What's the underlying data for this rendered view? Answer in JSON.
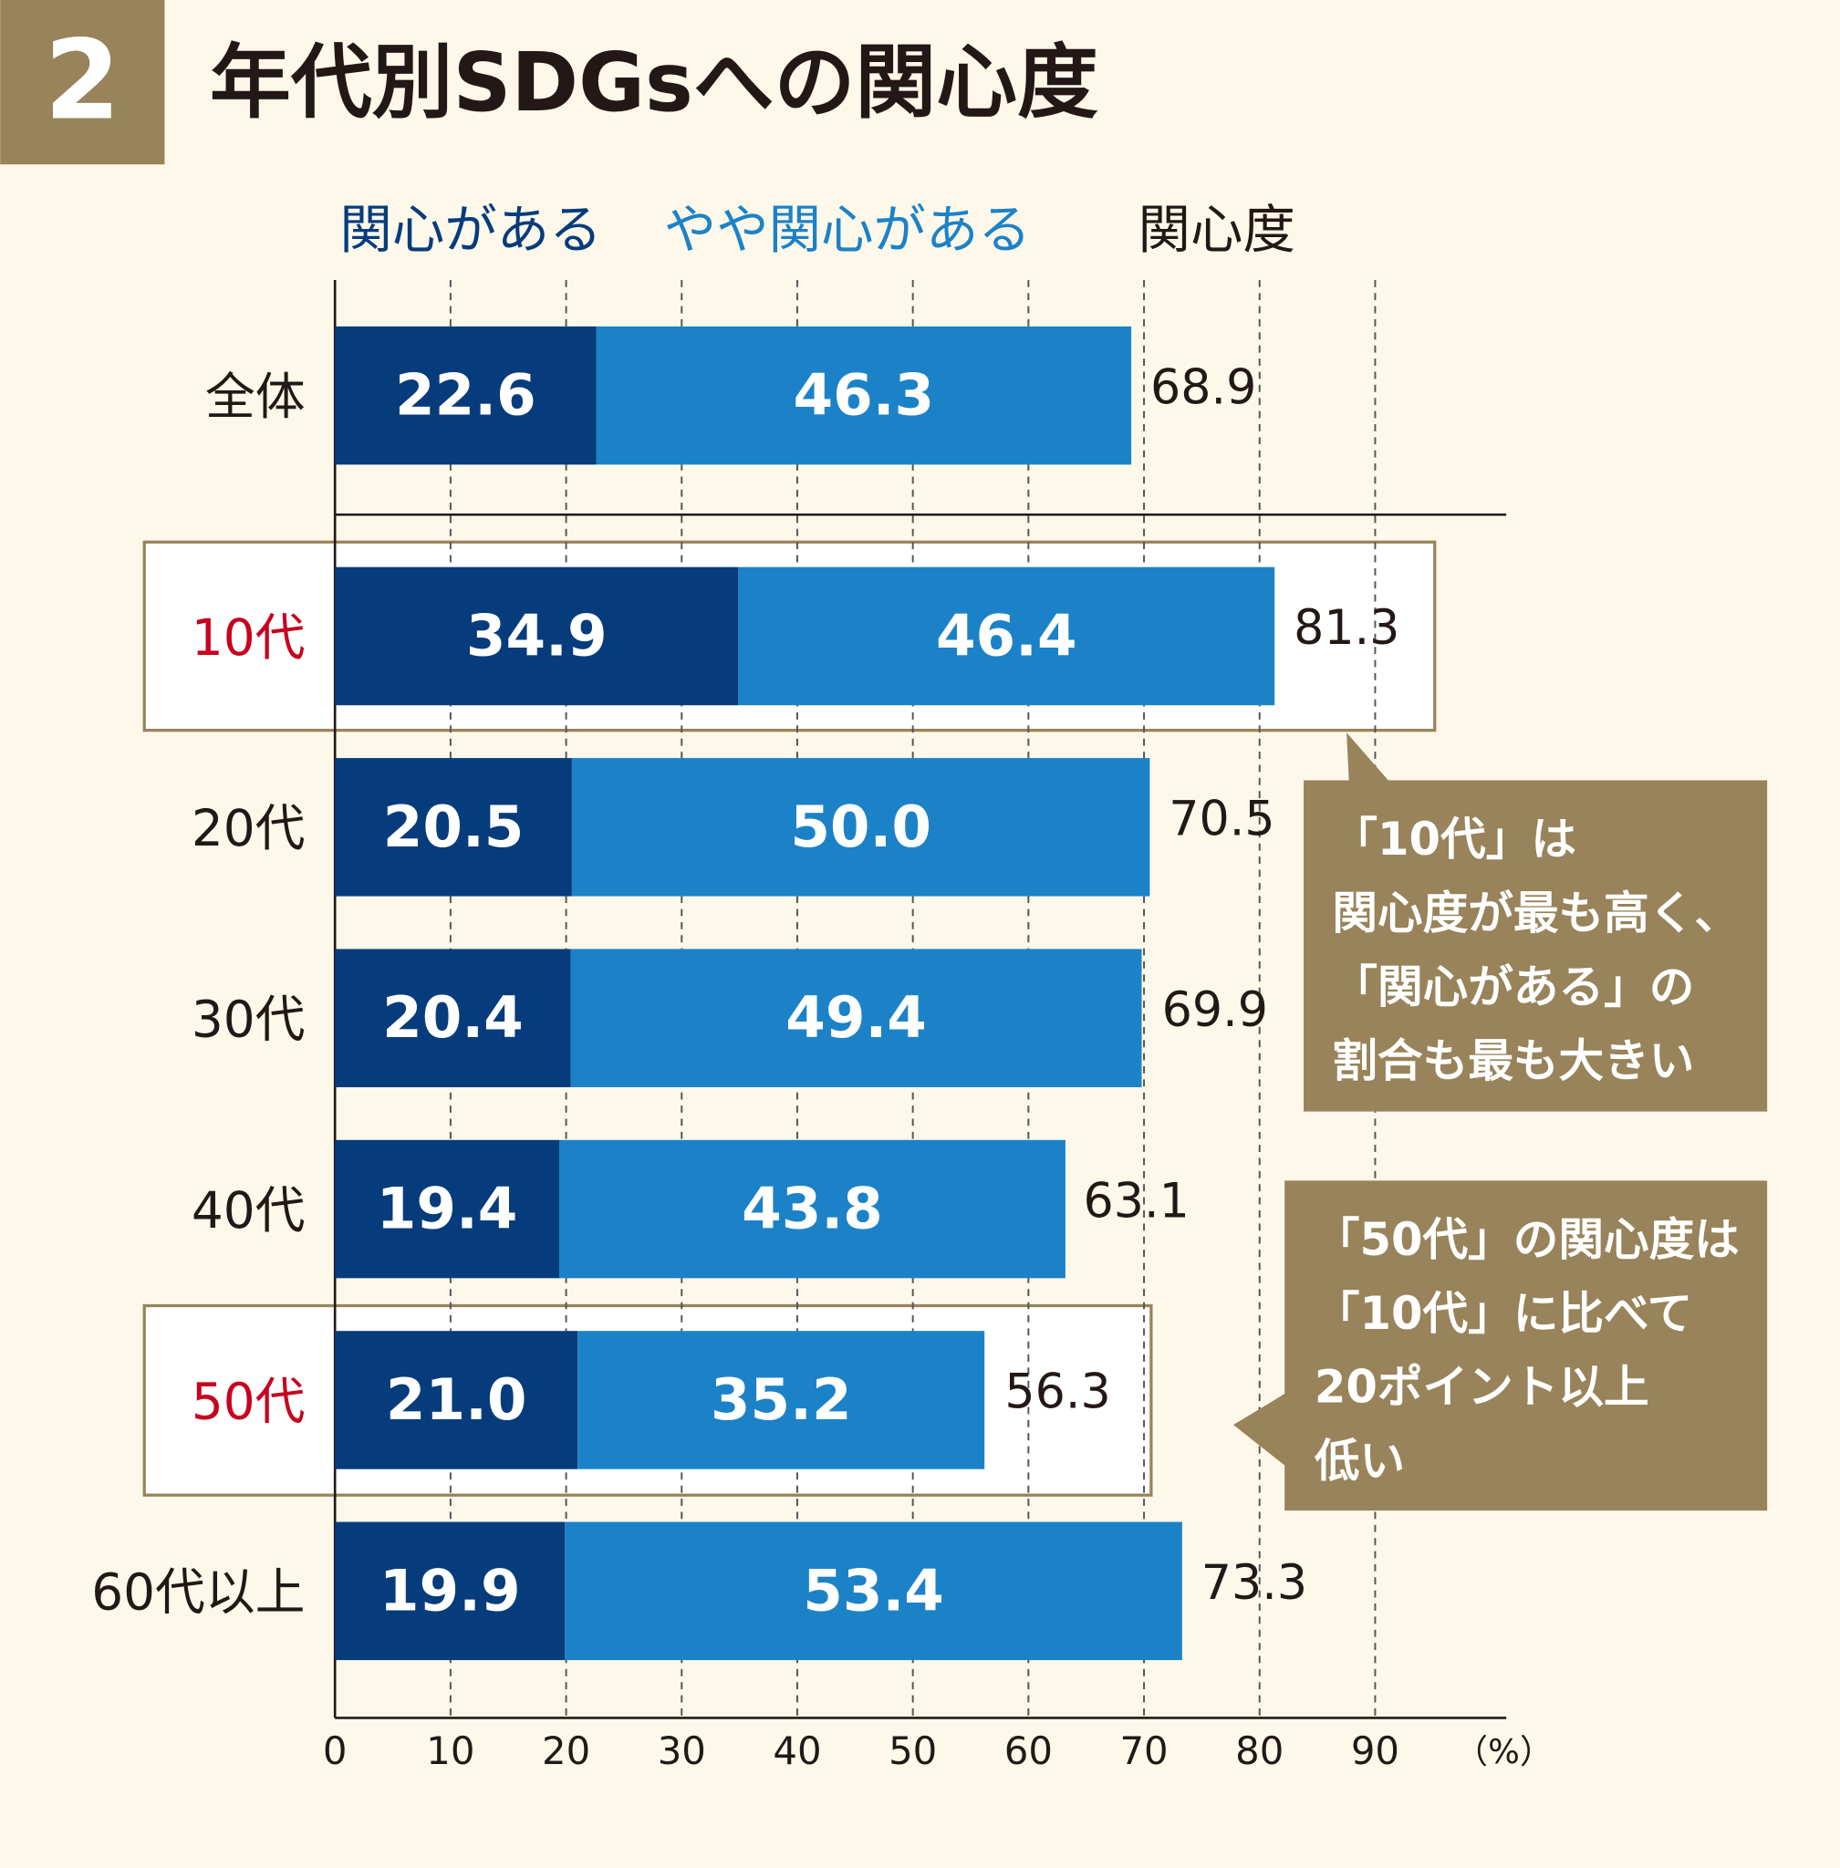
{
  "badge": "2",
  "chart_data": {
    "type": "stacked-barh",
    "title": "年代別SDGsへの関心度",
    "categories": [
      "全体",
      "10代",
      "20代",
      "30代",
      "40代",
      "50代",
      "60代以上"
    ],
    "series": [
      {
        "name": "関心がある",
        "color": "#073c7c",
        "values": [
          22.6,
          34.9,
          20.5,
          20.4,
          19.4,
          21.0,
          19.9
        ],
        "value_labels": [
          "22.6",
          "34.9",
          "20.5",
          "20.4",
          "19.4",
          "21.0",
          "19.9"
        ]
      },
      {
        "name": "やや関心がある",
        "color": "#1c82c7",
        "values": [
          46.3,
          46.4,
          50.0,
          49.4,
          43.8,
          35.2,
          53.4
        ],
        "value_labels": [
          "46.3",
          "46.4",
          "50.0",
          "49.4",
          "43.8",
          "35.2",
          "53.4"
        ]
      }
    ],
    "totals": {
      "name": "関心度",
      "color": "#231815",
      "values": [
        68.9,
        81.3,
        70.5,
        69.9,
        63.1,
        56.3,
        73.3
      ]
    },
    "highlighted": [
      1,
      5
    ],
    "highlight_color": "#c8001e",
    "xlim": [
      0,
      100
    ],
    "xticks": [
      0,
      10,
      20,
      30,
      40,
      50,
      60,
      70,
      80,
      90
    ],
    "x_unit": "（%）",
    "grid": true,
    "annotations": [
      {
        "lines": [
          "「10代」は",
          "関心度が最も高く、",
          "「関心がある」の",
          "割合も最も大きい"
        ]
      },
      {
        "lines": [
          "「50代」の関心度は",
          "「10代」に比べて",
          "20ポイント以上",
          "低い"
        ]
      }
    ]
  }
}
